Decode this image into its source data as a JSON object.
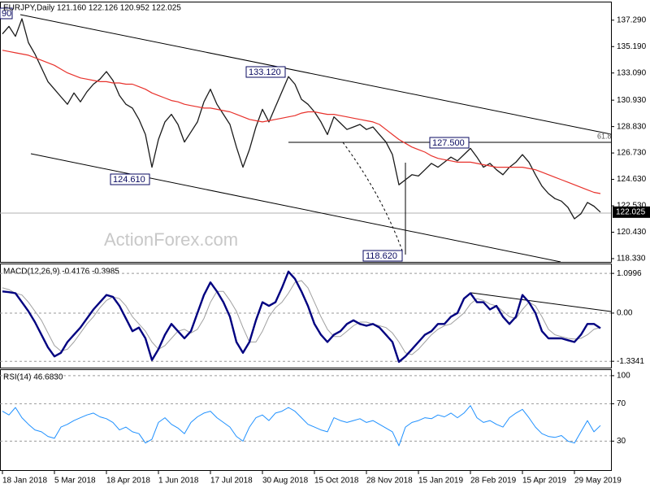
{
  "chart_data": [
    {
      "type": "line",
      "title": "EURJPY,Daily  121.160 122.126 120.952 122.025",
      "watermark": "ActionForex.com",
      "price_label": "122.025",
      "annotations": [
        "133.120",
        "124.610",
        "127.500",
        "118.620",
        "90",
        "61.8"
      ],
      "ylim": [
        118.07,
        138.7
      ],
      "yticks": [
        {
          "value": 137.29,
          "label": "137.290"
        },
        {
          "value": 135.19,
          "label": "135.190"
        },
        {
          "value": 133.09,
          "label": "133.090"
        },
        {
          "value": 130.93,
          "label": "130.930"
        },
        {
          "value": 128.83,
          "label": "128.830"
        },
        {
          "value": 126.73,
          "label": "126.730"
        },
        {
          "value": 124.63,
          "label": "124.630"
        },
        {
          "value": 122.53,
          "label": "122.530"
        },
        {
          "value": 120.43,
          "label": "120.430"
        },
        {
          "value": 118.33,
          "label": "118.330"
        }
      ],
      "series": [
        {
          "color": "#1a1a1a",
          "width": 1.3,
          "values": [
            136.2,
            136.8,
            136.0,
            137.4,
            135.5,
            134.6,
            133.5,
            132.4,
            131.8,
            131.2,
            130.6,
            131.5,
            130.8,
            131.6,
            132.2,
            132.6,
            133.2,
            132.5,
            131.3,
            130.6,
            130.3,
            129.4,
            128.2,
            125.6,
            127.8,
            129.2,
            129.8,
            129.0,
            127.6,
            128.4,
            129.2,
            130.8,
            131.8,
            130.6,
            129.8,
            129.0,
            127.2,
            125.6,
            127.0,
            128.8,
            130.2,
            129.2,
            130.4,
            131.6,
            132.8,
            132.2,
            131.0,
            130.6,
            130.0,
            129.2,
            128.2,
            129.6,
            129.1,
            128.6,
            128.8,
            129.0,
            128.6,
            128.8,
            128.2,
            127.6,
            126.6,
            124.2,
            124.6,
            125.0,
            124.9,
            125.4,
            125.9,
            125.6,
            126.0,
            126.4,
            126.1,
            126.6,
            127.1,
            126.4,
            125.6,
            125.9,
            125.4,
            125.0,
            125.6,
            126.0,
            126.6,
            126.0,
            125.0,
            124.1,
            123.5,
            123.1,
            122.9,
            122.4,
            121.5,
            121.9,
            122.8,
            122.5,
            122.025
          ]
        },
        {
          "color": "#e8322c",
          "width": 1.2,
          "values": [
            134.9,
            134.8,
            134.7,
            134.6,
            134.5,
            134.3,
            134.1,
            133.9,
            133.7,
            133.4,
            133.1,
            132.9,
            132.7,
            132.6,
            132.5,
            132.4,
            132.4,
            132.3,
            132.3,
            132.2,
            132.2,
            132.0,
            131.8,
            131.5,
            131.3,
            131.1,
            130.9,
            130.8,
            130.6,
            130.5,
            130.4,
            130.3,
            130.3,
            130.2,
            130.1,
            130.0,
            129.8,
            129.6,
            129.4,
            129.3,
            129.2,
            129.3,
            129.4,
            129.5,
            129.6,
            129.7,
            129.9,
            130.0,
            130.0,
            129.9,
            129.8,
            129.8,
            129.7,
            129.6,
            129.5,
            129.4,
            129.3,
            129.2,
            129.0,
            128.6,
            128.2,
            127.8,
            127.5,
            127.2,
            127.0,
            126.8,
            126.5,
            126.3,
            126.2,
            126.1,
            126.0,
            126.0,
            126.0,
            125.9,
            125.8,
            125.7,
            125.6,
            125.6,
            125.6,
            125.6,
            125.6,
            125.5,
            125.4,
            125.2,
            125.0,
            124.8,
            124.6,
            124.4,
            124.2,
            124.0,
            123.8,
            123.6,
            123.5
          ]
        }
      ]
    },
    {
      "type": "line",
      "title": "MACD(12,26,9) -0.4176 -0.3985",
      "ylim": [
        -1.51,
        1.35
      ],
      "yticks": [
        1.0996,
        {
          "value": 0,
          "label": "0.00"
        },
        -1.3341
      ],
      "series": [
        {
          "color": "#a0a0a0",
          "width": 1,
          "values": [
            0.7,
            0.65,
            0.55,
            0.5,
            0.3,
            0.05,
            -0.2,
            -0.55,
            -0.9,
            -1.05,
            -1.0,
            -0.8,
            -0.55,
            -0.3,
            -0.1,
            0.15,
            0.35,
            0.45,
            0.4,
            0.2,
            -0.1,
            -0.3,
            -0.5,
            -0.8,
            -1.0,
            -0.9,
            -0.7,
            -0.5,
            -0.45,
            -0.55,
            -0.45,
            -0.15,
            0.3,
            0.6,
            0.6,
            0.35,
            0.05,
            -0.4,
            -0.8,
            -0.8,
            -0.5,
            -0.1,
            0.15,
            0.3,
            0.55,
            0.85,
            0.9,
            0.7,
            0.3,
            -0.1,
            -0.45,
            -0.65,
            -0.65,
            -0.5,
            -0.35,
            -0.25,
            -0.25,
            -0.3,
            -0.35,
            -0.4,
            -0.55,
            -0.8,
            -1.1,
            -1.15,
            -1.0,
            -0.8,
            -0.6,
            -0.45,
            -0.35,
            -0.3,
            -0.15,
            0.0,
            0.25,
            0.4,
            0.35,
            0.25,
            0.2,
            0.05,
            -0.1,
            -0.15,
            0.1,
            0.3,
            0.2,
            -0.1,
            -0.45,
            -0.6,
            -0.65,
            -0.7,
            -0.72,
            -0.7,
            -0.6,
            -0.45,
            -0.3985
          ]
        },
        {
          "color": "#000080",
          "width": 2.4,
          "values": [
            0.6,
            0.58,
            0.55,
            0.3,
            0.05,
            -0.25,
            -0.6,
            -0.95,
            -1.2,
            -1.1,
            -0.8,
            -0.6,
            -0.4,
            -0.15,
            0.1,
            0.3,
            0.5,
            0.45,
            0.2,
            -0.15,
            -0.5,
            -0.4,
            -0.7,
            -1.3,
            -1.0,
            -0.6,
            -0.3,
            -0.5,
            -0.7,
            -0.5,
            0.0,
            0.5,
            0.85,
            0.6,
            0.3,
            -0.1,
            -0.8,
            -1.1,
            -0.8,
            -0.2,
            0.3,
            0.2,
            0.3,
            0.7,
            1.15,
            0.95,
            0.6,
            0.2,
            -0.3,
            -0.6,
            -0.8,
            -0.6,
            -0.5,
            -0.3,
            -0.2,
            -0.3,
            -0.35,
            -0.3,
            -0.4,
            -0.6,
            -0.8,
            -1.35,
            -1.2,
            -1.0,
            -0.8,
            -0.6,
            -0.5,
            -0.3,
            -0.3,
            -0.1,
            0.0,
            0.4,
            0.55,
            0.3,
            0.3,
            0.1,
            0.2,
            -0.1,
            -0.3,
            -0.1,
            0.5,
            0.3,
            0.0,
            -0.5,
            -0.7,
            -0.7,
            -0.7,
            -0.75,
            -0.8,
            -0.6,
            -0.3,
            -0.3,
            -0.4176
          ]
        }
      ]
    },
    {
      "type": "line",
      "title": "RSI(14) 46.6830",
      "ylim": [
        -1,
        106
      ],
      "yticks": [
        100,
        70,
        30
      ],
      "categories": [
        "18 Jan 2018",
        null,
        null,
        null,
        null,
        null,
        null,
        null,
        "5 Mar 2018",
        null,
        null,
        null,
        null,
        null,
        null,
        null,
        "18 Apr 2018",
        null,
        null,
        null,
        null,
        null,
        null,
        null,
        "1 Jun 2018",
        null,
        null,
        null,
        null,
        null,
        null,
        null,
        "17 Jul 2018",
        null,
        null,
        null,
        null,
        null,
        null,
        null,
        "30 Aug 2018",
        null,
        null,
        null,
        null,
        null,
        null,
        null,
        "15 Oct 2018",
        null,
        null,
        null,
        null,
        null,
        null,
        null,
        "28 Nov 2018",
        null,
        null,
        null,
        null,
        null,
        null,
        null,
        "15 Jan 2019",
        null,
        null,
        null,
        null,
        null,
        null,
        null,
        "28 Feb 2019",
        null,
        null,
        null,
        null,
        null,
        null,
        null,
        "15 Apr 2019",
        null,
        null,
        null,
        null,
        null,
        null,
        null,
        "29 May 2019",
        null,
        null,
        null,
        null
      ],
      "series": [
        {
          "color": "#1e90ff",
          "width": 1,
          "values": [
            62,
            58,
            66,
            55,
            48,
            42,
            40,
            35,
            33,
            45,
            48,
            52,
            55,
            58,
            60,
            56,
            54,
            50,
            42,
            45,
            40,
            38,
            28,
            32,
            50,
            55,
            48,
            44,
            38,
            50,
            56,
            60,
            62,
            55,
            50,
            45,
            35,
            30,
            45,
            55,
            58,
            52,
            60,
            62,
            66,
            62,
            55,
            48,
            45,
            42,
            40,
            55,
            52,
            50,
            52,
            54,
            50,
            52,
            48,
            44,
            40,
            25,
            45,
            50,
            52,
            55,
            54,
            58,
            56,
            60,
            55,
            60,
            68,
            55,
            50,
            52,
            48,
            45,
            55,
            60,
            64,
            55,
            45,
            38,
            35,
            34,
            36,
            30,
            28,
            40,
            52,
            40,
            46.683
          ]
        }
      ]
    }
  ]
}
